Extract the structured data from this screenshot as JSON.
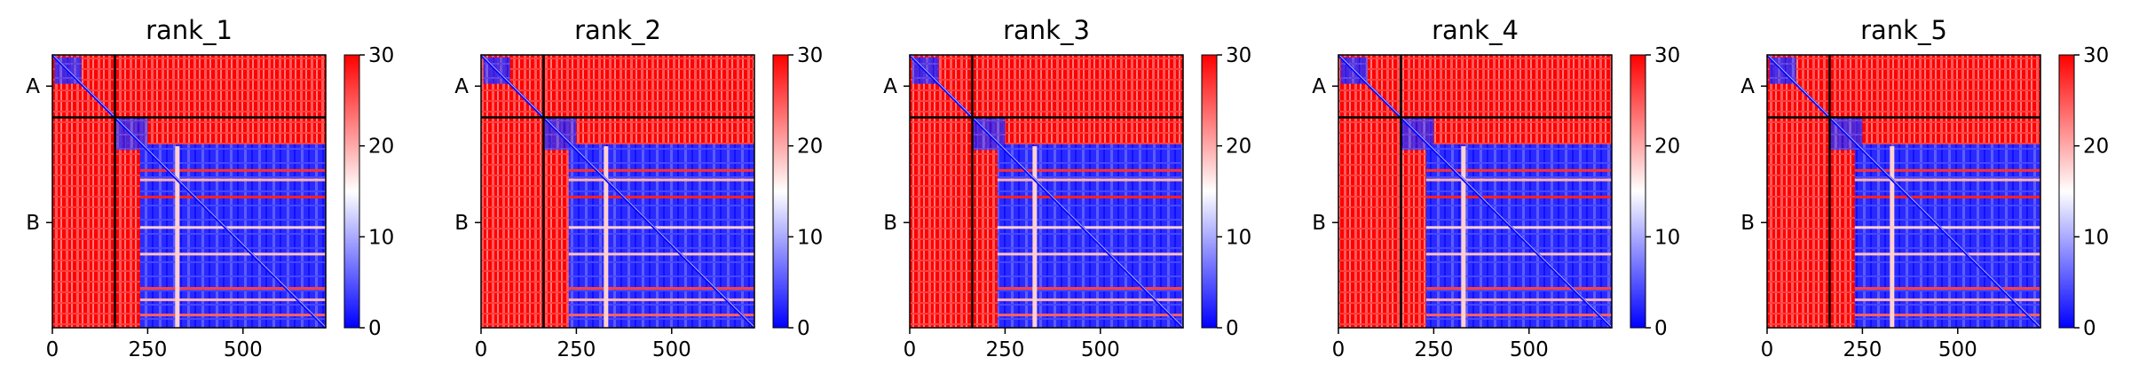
{
  "colorbar": {
    "ticks": [
      "0",
      "10",
      "20",
      "30"
    ],
    "vmin": 0,
    "vmax": 30,
    "colormap": [
      "#0000ff",
      "#ffffff",
      "#ff0000"
    ]
  },
  "x_ticks": [
    {
      "value": 0,
      "label": "0"
    },
    {
      "value": 250,
      "label": "250"
    },
    {
      "value": 500,
      "label": "500"
    }
  ],
  "chain_labels": [
    "A",
    "B"
  ],
  "chart_data": [
    {
      "type": "heatmap",
      "title": "rank_1",
      "xlabel": "",
      "ylabel": "",
      "xlim": [
        0,
        717
      ],
      "ylim": [
        717,
        0
      ],
      "chains": [
        {
          "name": "A",
          "start": 0,
          "end": 164
        },
        {
          "name": "B",
          "start": 164,
          "end": 717
        }
      ],
      "colorbar_range": [
        0,
        30
      ]
    },
    {
      "type": "heatmap",
      "title": "rank_2",
      "xlabel": "",
      "ylabel": "",
      "xlim": [
        0,
        717
      ],
      "ylim": [
        717,
        0
      ],
      "chains": [
        {
          "name": "A",
          "start": 0,
          "end": 164
        },
        {
          "name": "B",
          "start": 164,
          "end": 717
        }
      ],
      "colorbar_range": [
        0,
        30
      ]
    },
    {
      "type": "heatmap",
      "title": "rank_3",
      "xlabel": "",
      "ylabel": "",
      "xlim": [
        0,
        717
      ],
      "ylim": [
        717,
        0
      ],
      "chains": [
        {
          "name": "A",
          "start": 0,
          "end": 164
        },
        {
          "name": "B",
          "start": 164,
          "end": 717
        }
      ],
      "colorbar_range": [
        0,
        30
      ]
    },
    {
      "type": "heatmap",
      "title": "rank_4",
      "xlabel": "",
      "ylabel": "",
      "xlim": [
        0,
        717
      ],
      "ylim": [
        717,
        0
      ],
      "chains": [
        {
          "name": "A",
          "start": 0,
          "end": 164
        },
        {
          "name": "B",
          "start": 164,
          "end": 717
        }
      ],
      "colorbar_range": [
        0,
        30
      ]
    },
    {
      "type": "heatmap",
      "title": "rank_5",
      "xlabel": "",
      "ylabel": "",
      "xlim": [
        0,
        717
      ],
      "ylim": [
        717,
        0
      ],
      "chains": [
        {
          "name": "A",
          "start": 0,
          "end": 164
        },
        {
          "name": "B",
          "start": 164,
          "end": 717
        }
      ],
      "colorbar_range": [
        0,
        30
      ]
    }
  ]
}
